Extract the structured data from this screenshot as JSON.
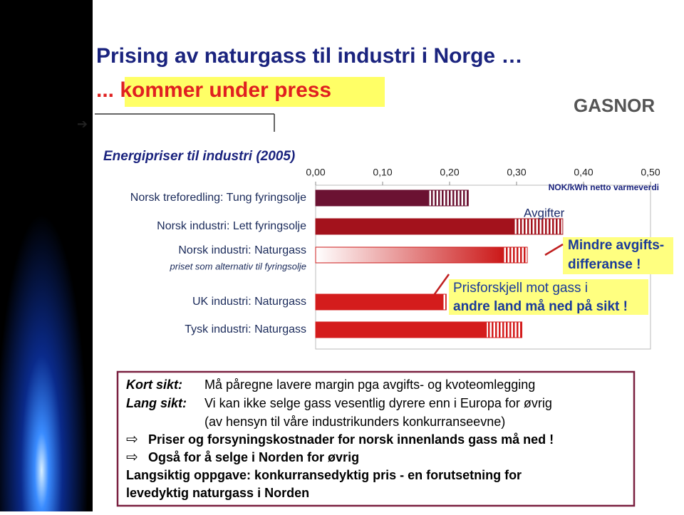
{
  "header": {
    "title": "Prising av naturgass til industri i Norge …",
    "subtitle": "... kommer under press",
    "logo": "GASNOR",
    "arrow": "➔"
  },
  "chart_data": {
    "type": "bar",
    "orientation": "horizontal",
    "stacked": true,
    "title": "Energipriser til industri (2005)",
    "x_label": "NOK/kWh netto varmeverdi",
    "categories": [
      "Norsk treforedling: Tung fyringsolje",
      "Norsk industri:  Lett fyringsolje",
      "Norsk industri: Naturgass",
      "UK industri: Naturgass",
      "Tysk industri: Naturgass"
    ],
    "category_note": "priset som alternativ til fyringsolje",
    "series": [
      {
        "colors": [
          "#6b1232",
          "#a3121c",
          "#cc1a1a",
          "#d41c1c",
          "#d41c1c"
        ],
        "gradient": [
          false,
          false,
          true,
          false,
          false
        ],
        "values": [
          0.167,
          0.295,
          0.279,
          0.188,
          0.255
        ]
      },
      {
        "colors": [
          "#6b1232",
          "#a3121c",
          "#cc1a1a",
          "#d41c1c",
          "#d41c1c"
        ],
        "hatched": true,
        "values": [
          0.061,
          0.074,
          0.037,
          0.007,
          0.053
        ]
      }
    ],
    "xlim": [
      0,
      0.5
    ],
    "xticks": [
      {
        "value": 0,
        "label": "0,00"
      },
      {
        "value": 0.1,
        "label": "0,10"
      },
      {
        "value": 0.2,
        "label": "0,20"
      },
      {
        "value": 0.3,
        "label": "0,30"
      },
      {
        "value": 0.4,
        "label": "0,40"
      },
      {
        "value": 0.5,
        "label": "0,50"
      }
    ],
    "annotations": [
      "Avgifter",
      "Mindre avgifts-",
      "differanse !",
      "Prisforskjell mot gass i",
      "andre land må ned på sikt !"
    ]
  },
  "box": {
    "lines": [
      {
        "label": "Kort sikt:",
        "text": "Må påregne lavere margin pga avgifts- og kvoteomlegging"
      },
      {
        "label": "Lang sikt:",
        "text": "Vi kan ikke selge gass vesentlig dyrere enn i Europa for øvrig"
      },
      {
        "text": "(av hensyn til våre industrikunders konkurranseevne)"
      },
      {
        "bullet": "⇨",
        "text": "Priser og forsyningskostnader for norsk innenlands gass må ned !"
      },
      {
        "bullet": "⇨",
        "text": "Også for å selge i Norden for øvrig"
      },
      {
        "text": "Langsiktig oppgave: konkurransedyktig pris -  en forutsetning for"
      },
      {
        "text": "levedyktig naturgass i Norden"
      }
    ]
  }
}
